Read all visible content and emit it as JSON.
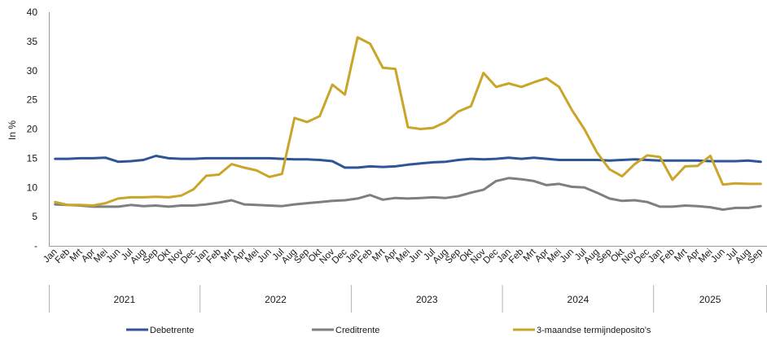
{
  "chart_data": {
    "type": "line",
    "ylabel": "In %",
    "ylim": [
      0,
      40
    ],
    "yticks": [
      {
        "value": 40,
        "label": "40"
      },
      {
        "value": 35,
        "label": "35"
      },
      {
        "value": 30,
        "label": "30"
      },
      {
        "value": 25,
        "label": "25"
      },
      {
        "value": 20,
        "label": "20"
      },
      {
        "value": 15,
        "label": "15"
      },
      {
        "value": 10,
        "label": "10"
      },
      {
        "value": 5,
        "label": "5"
      },
      {
        "value": 0,
        "label": "-"
      }
    ],
    "categories": [
      "Jan",
      "Feb",
      "Mrt",
      "Apr",
      "Mei",
      "Jun",
      "Jul",
      "Aug",
      "Sep",
      "Okt",
      "Nov",
      "Dec",
      "Jan",
      "Feb",
      "Mrt",
      "Apr",
      "Mei",
      "Jun",
      "Jul",
      "Aug",
      "Sep",
      "Okt",
      "Nov",
      "Dec",
      "Jan",
      "Feb",
      "Mrt",
      "Apr",
      "Mei",
      "Jun",
      "Jul",
      "Aug",
      "Sep",
      "Okt",
      "Nov",
      "Dec",
      "Jan",
      "Feb",
      "Mrt",
      "Apr",
      "Mei",
      "Jun",
      "Jul",
      "Aug",
      "Sep",
      "Okt",
      "Nov",
      "Dec",
      "Jan",
      "Feb",
      "Mrt",
      "Apr",
      "Mei",
      "Jun",
      "Jul",
      "Aug",
      "Sep"
    ],
    "year_groups": [
      {
        "label": "2021",
        "count": 12
      },
      {
        "label": "2022",
        "count": 12
      },
      {
        "label": "2023",
        "count": 12
      },
      {
        "label": "2024",
        "count": 12
      },
      {
        "label": "2025",
        "count": 9
      }
    ],
    "grid": false,
    "legend_position": "bottom",
    "series": [
      {
        "name": "Debetrente",
        "color": "#2E5597",
        "values": [
          14.9,
          14.9,
          15.0,
          15.0,
          15.1,
          14.4,
          14.5,
          14.7,
          15.4,
          15.0,
          14.9,
          14.9,
          15.0,
          15.0,
          15.0,
          15.0,
          15.0,
          15.0,
          14.9,
          14.8,
          14.8,
          14.7,
          14.5,
          13.4,
          13.4,
          13.6,
          13.5,
          13.6,
          13.9,
          14.1,
          14.3,
          14.4,
          14.7,
          14.9,
          14.8,
          14.9,
          15.1,
          14.9,
          15.1,
          14.9,
          14.7,
          14.7,
          14.7,
          14.7,
          14.6,
          14.7,
          14.8,
          14.7,
          14.6,
          14.6,
          14.6,
          14.6,
          14.5,
          14.5,
          14.5,
          14.6,
          14.4
        ]
      },
      {
        "name": "Creditrente",
        "color": "#7F7F7F",
        "values": [
          7.1,
          7.0,
          6.9,
          6.7,
          6.7,
          6.7,
          7.0,
          6.8,
          6.9,
          6.7,
          6.9,
          6.9,
          7.1,
          7.4,
          7.8,
          7.1,
          7.0,
          6.9,
          6.8,
          7.1,
          7.3,
          7.5,
          7.7,
          7.8,
          8.1,
          8.7,
          7.9,
          8.2,
          8.1,
          8.2,
          8.3,
          8.2,
          8.5,
          9.1,
          9.6,
          11.1,
          11.6,
          11.4,
          11.1,
          10.4,
          10.6,
          10.1,
          10.0,
          9.1,
          8.1,
          7.7,
          7.8,
          7.5,
          6.7,
          6.7,
          6.9,
          6.8,
          6.6,
          6.2,
          6.5,
          6.5,
          6.8
        ]
      },
      {
        "name": "3-maandse termijndeposito’s",
        "color": "#C9A52A",
        "values": [
          7.5,
          7.0,
          7.0,
          6.9,
          7.3,
          8.1,
          8.3,
          8.3,
          8.4,
          8.3,
          8.6,
          9.7,
          12.0,
          12.2,
          14.0,
          13.4,
          12.9,
          11.8,
          12.3,
          21.9,
          21.2,
          22.2,
          27.6,
          25.9,
          35.7,
          34.6,
          30.5,
          30.3,
          20.3,
          20.0,
          20.2,
          21.2,
          23.0,
          23.9,
          29.6,
          27.2,
          27.8,
          27.2,
          28.0,
          28.7,
          27.2,
          23.3,
          20.0,
          16.0,
          13.1,
          11.9,
          14.0,
          15.5,
          15.2,
          11.3,
          13.6,
          13.7,
          15.4,
          10.5,
          10.7,
          10.6,
          10.6
        ]
      }
    ]
  }
}
